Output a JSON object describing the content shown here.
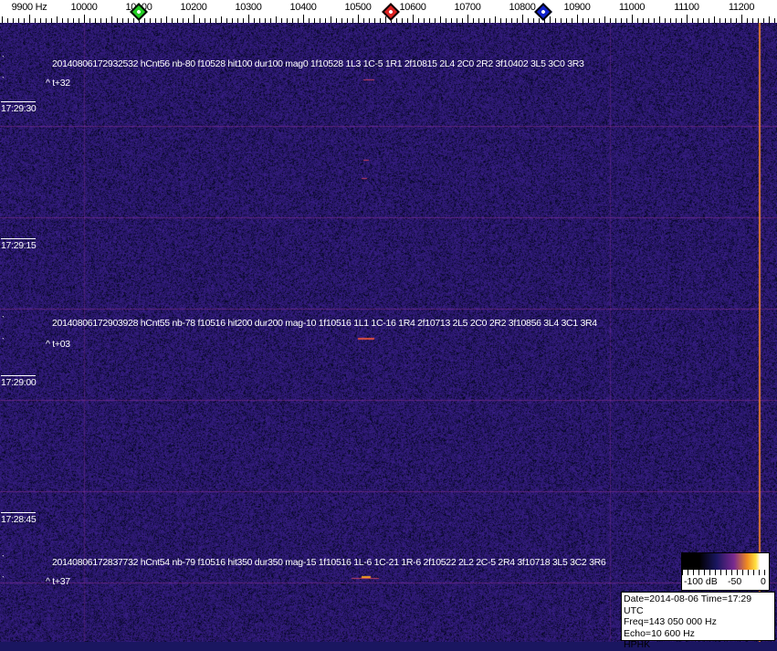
{
  "axis": {
    "unit_label": "9900 Hz",
    "labels": [
      "10000",
      "10100",
      "10200",
      "10300",
      "10400",
      "10500",
      "10600",
      "10700",
      "10800",
      "10900",
      "11000",
      "11100",
      "11200"
    ],
    "markers": [
      {
        "name": "green-marker",
        "freq": 10100,
        "color": "#22cc22"
      },
      {
        "name": "red-marker",
        "freq": 10560,
        "color": "#dd2222"
      },
      {
        "name": "blue-marker",
        "freq": 10838,
        "color": "#1122cc"
      }
    ]
  },
  "events": [
    {
      "text": "20140806172932532 hCnt56 nb-80 f10528 hit100 dur100 mag0 1f10528 1L3 1C-5 1R1 2f10815 2L4 2C0 2R2 3f10402 3L5 3C0 3R3",
      "offset": "^ t+32"
    },
    {
      "text": "20140806172903928 hCnt55 nb-78 f10516 hit200 dur200 mag-10 1f10516 1L1 1C-16 1R4 2f10713 2L5 2C0 2R2 3f10856 3L4 3C1 3R4",
      "offset": "^ t+03"
    },
    {
      "text": "20140806172837732 hCnt54 nb-79 f10516 hit350 dur350 mag-15 1f10516 1L-6 1C-21 1R-6 2f10522 2L2 2C-5 2R4 3f10718 3L5 3C2 3R6",
      "offset": "^ t+37"
    }
  ],
  "time_labels": [
    "17:29:30",
    "17:29:15",
    "17:29:00",
    "17:28:45"
  ],
  "colorbar": {
    "labels": [
      "-100 dB",
      "-50",
      "0"
    ]
  },
  "info": {
    "date_time": "Date=2014-08-06 Time=17:29 UTC",
    "freq": "Freq=143 050 000 Hz",
    "echo": "Echo=10 600 Hz",
    "station": "HPHK"
  },
  "colors": {
    "background": "#1a1660",
    "grid": "#7a2a90",
    "carrier": "#e07a30"
  }
}
